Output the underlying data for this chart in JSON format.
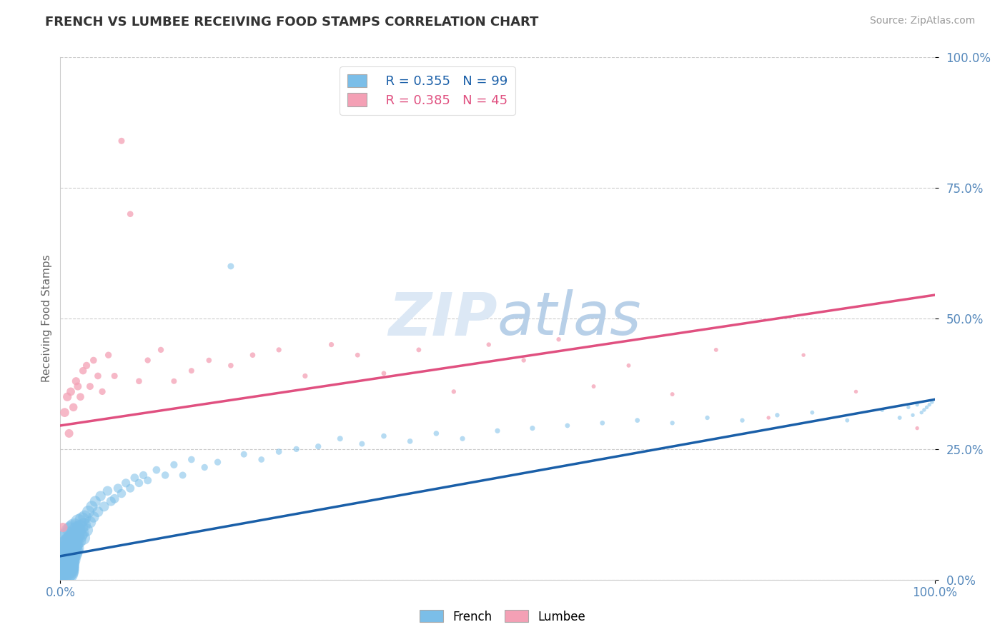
{
  "title": "FRENCH VS LUMBEE RECEIVING FOOD STAMPS CORRELATION CHART",
  "source": "Source: ZipAtlas.com",
  "ylabel": "Receiving Food Stamps",
  "xlim": [
    0,
    1
  ],
  "ylim": [
    0,
    1
  ],
  "ytick_values": [
    0.0,
    0.25,
    0.5,
    0.75,
    1.0
  ],
  "legend_r_french": "R = 0.355",
  "legend_n_french": "N = 99",
  "legend_r_lumbee": "R = 0.385",
  "legend_n_lumbee": "N = 45",
  "french_color": "#7bbee8",
  "lumbee_color": "#f4a0b5",
  "french_line_color": "#1a5fa8",
  "lumbee_line_color": "#e05080",
  "watermark_color": "#dce8f5",
  "background_color": "#ffffff",
  "grid_color": "#cccccc",
  "title_color": "#333333",
  "tick_color": "#5588bb",
  "french_line_start": 0.045,
  "french_line_end": 0.345,
  "lumbee_line_start": 0.295,
  "lumbee_line_end": 0.545,
  "french_x": [
    0.002,
    0.003,
    0.004,
    0.005,
    0.005,
    0.006,
    0.006,
    0.007,
    0.007,
    0.008,
    0.008,
    0.009,
    0.009,
    0.01,
    0.01,
    0.011,
    0.011,
    0.012,
    0.012,
    0.013,
    0.013,
    0.014,
    0.014,
    0.015,
    0.015,
    0.016,
    0.016,
    0.017,
    0.018,
    0.019,
    0.02,
    0.021,
    0.022,
    0.023,
    0.024,
    0.025,
    0.026,
    0.027,
    0.028,
    0.03,
    0.032,
    0.034,
    0.036,
    0.038,
    0.04,
    0.043,
    0.046,
    0.05,
    0.054,
    0.058,
    0.062,
    0.066,
    0.07,
    0.075,
    0.08,
    0.085,
    0.09,
    0.095,
    0.1,
    0.11,
    0.12,
    0.13,
    0.14,
    0.15,
    0.165,
    0.18,
    0.195,
    0.21,
    0.23,
    0.25,
    0.27,
    0.295,
    0.32,
    0.345,
    0.37,
    0.4,
    0.43,
    0.46,
    0.5,
    0.54,
    0.58,
    0.62,
    0.66,
    0.7,
    0.74,
    0.78,
    0.82,
    0.86,
    0.9,
    0.94,
    0.96,
    0.97,
    0.975,
    0.98,
    0.985,
    0.988,
    0.991,
    0.994,
    0.997
  ],
  "french_y": [
    0.03,
    0.02,
    0.025,
    0.035,
    0.015,
    0.04,
    0.025,
    0.05,
    0.02,
    0.06,
    0.03,
    0.045,
    0.065,
    0.04,
    0.08,
    0.055,
    0.07,
    0.06,
    0.09,
    0.05,
    0.075,
    0.065,
    0.095,
    0.055,
    0.08,
    0.07,
    0.1,
    0.06,
    0.085,
    0.095,
    0.075,
    0.11,
    0.085,
    0.1,
    0.09,
    0.115,
    0.08,
    0.105,
    0.12,
    0.095,
    0.13,
    0.11,
    0.14,
    0.12,
    0.15,
    0.13,
    0.16,
    0.14,
    0.17,
    0.15,
    0.155,
    0.175,
    0.165,
    0.185,
    0.175,
    0.195,
    0.185,
    0.2,
    0.19,
    0.21,
    0.2,
    0.22,
    0.2,
    0.23,
    0.215,
    0.225,
    0.6,
    0.24,
    0.23,
    0.245,
    0.25,
    0.255,
    0.27,
    0.26,
    0.275,
    0.265,
    0.28,
    0.27,
    0.285,
    0.29,
    0.295,
    0.3,
    0.305,
    0.3,
    0.31,
    0.305,
    0.315,
    0.32,
    0.305,
    0.325,
    0.31,
    0.33,
    0.315,
    0.335,
    0.32,
    0.325,
    0.33,
    0.335,
    0.34
  ],
  "french_sizes": [
    350,
    320,
    300,
    280,
    260,
    260,
    240,
    230,
    220,
    210,
    200,
    195,
    185,
    180,
    175,
    168,
    162,
    155,
    150,
    145,
    140,
    135,
    130,
    125,
    120,
    115,
    110,
    105,
    100,
    96,
    92,
    88,
    84,
    80,
    76,
    72,
    68,
    64,
    60,
    56,
    52,
    48,
    45,
    42,
    40,
    38,
    36,
    34,
    32,
    30,
    29,
    28,
    27,
    26,
    25,
    24,
    23,
    22,
    21,
    20,
    19,
    18,
    17,
    16,
    15,
    15,
    14,
    14,
    13,
    13,
    12,
    12,
    11,
    11,
    10,
    10,
    10,
    9,
    9,
    9,
    8,
    8,
    8,
    7,
    7,
    7,
    7,
    6,
    6,
    6,
    6,
    5,
    5,
    5,
    5,
    5,
    5,
    5,
    5
  ],
  "lumbee_x": [
    0.003,
    0.005,
    0.008,
    0.01,
    0.012,
    0.015,
    0.018,
    0.02,
    0.023,
    0.026,
    0.03,
    0.034,
    0.038,
    0.043,
    0.048,
    0.055,
    0.062,
    0.07,
    0.08,
    0.09,
    0.1,
    0.115,
    0.13,
    0.15,
    0.17,
    0.195,
    0.22,
    0.25,
    0.28,
    0.31,
    0.34,
    0.37,
    0.41,
    0.45,
    0.49,
    0.53,
    0.57,
    0.61,
    0.65,
    0.7,
    0.75,
    0.81,
    0.85,
    0.91,
    0.98
  ],
  "lumbee_y": [
    0.1,
    0.32,
    0.35,
    0.28,
    0.36,
    0.33,
    0.38,
    0.37,
    0.35,
    0.4,
    0.41,
    0.37,
    0.42,
    0.39,
    0.36,
    0.43,
    0.39,
    0.84,
    0.7,
    0.38,
    0.42,
    0.44,
    0.38,
    0.4,
    0.42,
    0.41,
    0.43,
    0.44,
    0.39,
    0.45,
    0.43,
    0.395,
    0.44,
    0.36,
    0.45,
    0.42,
    0.46,
    0.37,
    0.41,
    0.355,
    0.44,
    0.31,
    0.43,
    0.36,
    0.29
  ],
  "lumbee_sizes": [
    30,
    28,
    26,
    25,
    24,
    23,
    22,
    21,
    20,
    19,
    18,
    17,
    16,
    16,
    15,
    15,
    14,
    14,
    13,
    13,
    12,
    12,
    11,
    11,
    10,
    10,
    10,
    9,
    9,
    9,
    8,
    8,
    8,
    7,
    7,
    7,
    7,
    6,
    6,
    6,
    6,
    5,
    5,
    5,
    5
  ]
}
